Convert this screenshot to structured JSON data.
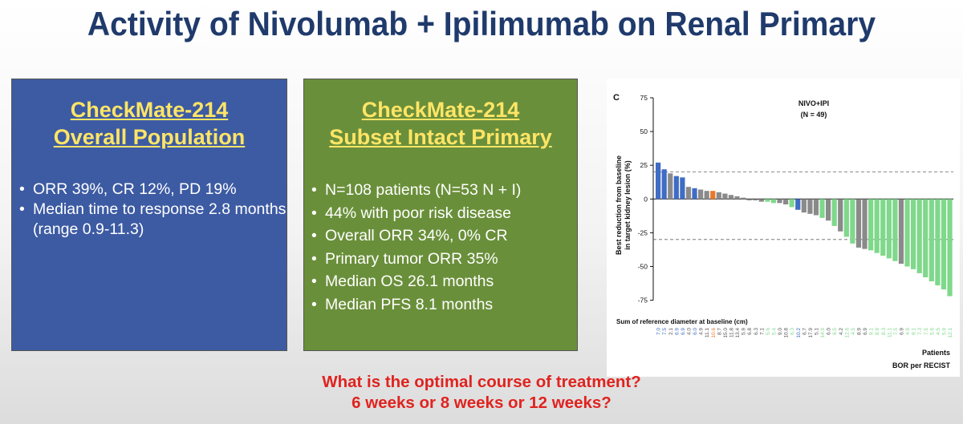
{
  "slide": {
    "title": "Activity of Nivolumab + Ipilimumab on Renal Primary"
  },
  "left_box": {
    "heading_line1": "CheckMate-214",
    "heading_line2": "Overall Population",
    "bullets": [
      "ORR 39%, CR 12%, PD 19%",
      "Median time to response 2.8 months (range 0.9-11.3)"
    ]
  },
  "middle_box": {
    "heading_line1": "CheckMate-214",
    "heading_line2": "Subset Intact Primary",
    "bullets": [
      "N=108 patients (N=53 N + I)",
      "44% with poor risk disease",
      "Overall ORR 34%, 0% CR",
      "Primary tumor ORR 35%",
      "Median OS 26.1 months",
      "Median PFS 8.1 months"
    ]
  },
  "footer": {
    "line1": "What is the optimal course of treatment?",
    "line2": "6 weeks or 8 weeks or 12 weeks?"
  },
  "chart_data": {
    "type": "bar",
    "panel_label": "C",
    "annotation_line1": "NIVO+IPI",
    "annotation_line2": "(N = 49)",
    "ylabel_line1": "Best reduction from baseline",
    "ylabel_line2": "in target kidney lesion (%)",
    "ylim": [
      -80,
      75
    ],
    "yticks": [
      75,
      50,
      25,
      0,
      -25,
      -50,
      -75
    ],
    "reference_lines": [
      20,
      -30
    ],
    "xlabel": "Patients",
    "legend_title": "BOR per RECIST",
    "baseline_label": "Sum of reference diameter at baseline (cm)",
    "colors": {
      "blue": "#3f6cc4",
      "gray": "#8a8a8a",
      "orange": "#e8792b",
      "green": "#7fd88b"
    },
    "bars": [
      {
        "value": 27,
        "color": "blue",
        "baseline": "7.0"
      },
      {
        "value": 22,
        "color": "blue",
        "baseline": "7.5"
      },
      {
        "value": 19,
        "color": "gray",
        "baseline": "2.1"
      },
      {
        "value": 17,
        "color": "blue",
        "baseline": "6.9"
      },
      {
        "value": 16,
        "color": "blue",
        "baseline": "6.9"
      },
      {
        "value": 9,
        "color": "gray",
        "baseline": "4.0"
      },
      {
        "value": 8,
        "color": "blue",
        "baseline": "6.0"
      },
      {
        "value": 7,
        "color": "gray",
        "baseline": "4.9"
      },
      {
        "value": 6,
        "color": "gray",
        "baseline": "11.1"
      },
      {
        "value": 6,
        "color": "orange",
        "baseline": "10.6"
      },
      {
        "value": 5,
        "color": "gray",
        "baseline": "8.7"
      },
      {
        "value": 4,
        "color": "gray",
        "baseline": "15.0"
      },
      {
        "value": 3,
        "color": "gray",
        "baseline": "11.8"
      },
      {
        "value": 2,
        "color": "gray",
        "baseline": "13.4"
      },
      {
        "value": 1,
        "color": "gray",
        "baseline": "5.9"
      },
      {
        "value": -1,
        "color": "gray",
        "baseline": "6.8"
      },
      {
        "value": -1,
        "color": "gray",
        "baseline": "6.3"
      },
      {
        "value": -2,
        "color": "gray",
        "baseline": "7.1"
      },
      {
        "value": -2,
        "color": "green",
        "baseline": "5.6"
      },
      {
        "value": -3,
        "color": "green",
        "baseline": "5.4"
      },
      {
        "value": -3,
        "color": "gray",
        "baseline": "9.0"
      },
      {
        "value": -4,
        "color": "gray",
        "baseline": "10.8"
      },
      {
        "value": -6,
        "color": "green",
        "baseline": "6.3"
      },
      {
        "value": -8,
        "color": "blue",
        "baseline": "10.2"
      },
      {
        "value": -10,
        "color": "gray",
        "baseline": "6.7"
      },
      {
        "value": -11,
        "color": "gray",
        "baseline": "17.9"
      },
      {
        "value": -12,
        "color": "gray",
        "baseline": "5.1"
      },
      {
        "value": -14,
        "color": "green",
        "baseline": "14.9"
      },
      {
        "value": -16,
        "color": "gray",
        "baseline": "6.0"
      },
      {
        "value": -20,
        "color": "green",
        "baseline": "6.5"
      },
      {
        "value": -24,
        "color": "gray",
        "baseline": "4.2"
      },
      {
        "value": -28,
        "color": "green",
        "baseline": "12.6"
      },
      {
        "value": -33,
        "color": "green",
        "baseline": "4.5"
      },
      {
        "value": -36,
        "color": "gray",
        "baseline": "8.9"
      },
      {
        "value": -37,
        "color": "gray",
        "baseline": "6.9"
      },
      {
        "value": -38,
        "color": "green",
        "baseline": "9.1"
      },
      {
        "value": -40,
        "color": "green",
        "baseline": "8.9"
      },
      {
        "value": -42,
        "color": "green",
        "baseline": "8.3"
      },
      {
        "value": -44,
        "color": "green",
        "baseline": "11.1"
      },
      {
        "value": -46,
        "color": "green",
        "baseline": "7.5"
      },
      {
        "value": -48,
        "color": "gray",
        "baseline": "6.9"
      },
      {
        "value": -50,
        "color": "green",
        "baseline": "4.9"
      },
      {
        "value": -52,
        "color": "green",
        "baseline": "9.1"
      },
      {
        "value": -55,
        "color": "green",
        "baseline": "7.3"
      },
      {
        "value": -58,
        "color": "green",
        "baseline": "7.5"
      },
      {
        "value": -61,
        "color": "green",
        "baseline": "5.6"
      },
      {
        "value": -64,
        "color": "green",
        "baseline": "4.5"
      },
      {
        "value": -67,
        "color": "green",
        "baseline": "5.9"
      },
      {
        "value": -72,
        "color": "green",
        "baseline": "12.1"
      }
    ]
  }
}
